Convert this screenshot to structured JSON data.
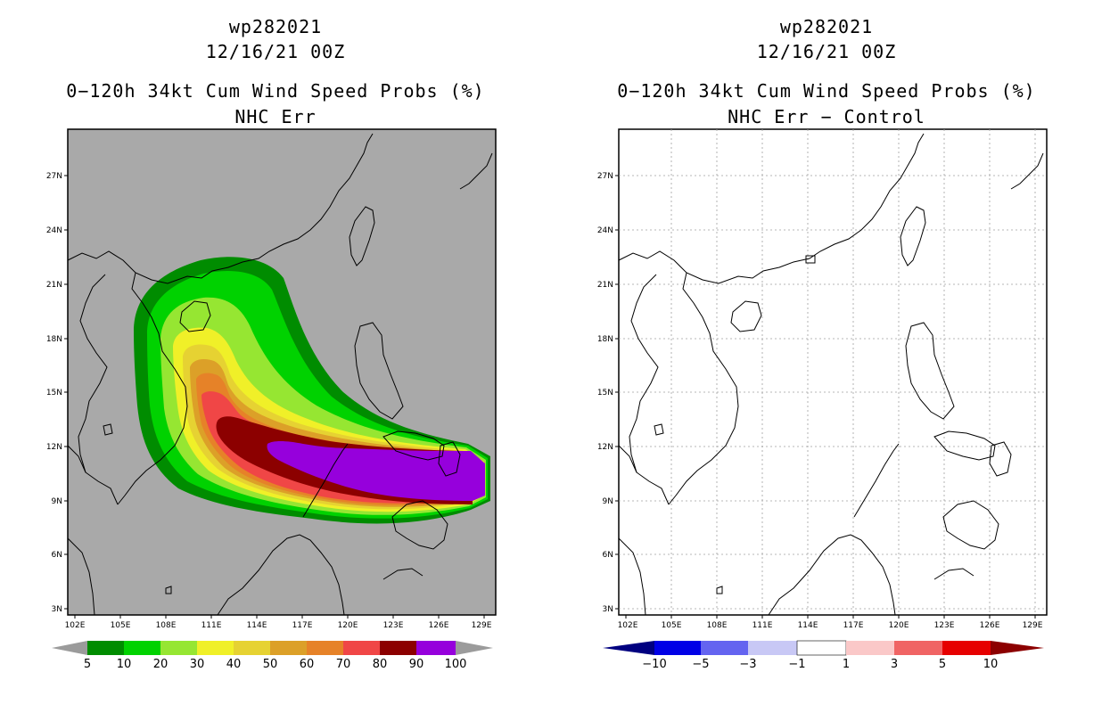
{
  "left_panel": {
    "storm_id": "wp282021",
    "date": "12/16/21 00Z",
    "product": "0−120h 34kt Cum Wind Speed Probs (%)",
    "subtitle": "NHC Err",
    "lon_labels": [
      "102E",
      "105E",
      "108E",
      "111E",
      "114E",
      "117E",
      "120E",
      "123E",
      "126E",
      "129E"
    ],
    "lat_labels": [
      "27N",
      "24N",
      "21N",
      "18N",
      "15N",
      "12N",
      "9N",
      "6N",
      "3N"
    ],
    "colorbar": {
      "labels": [
        "5",
        "10",
        "20",
        "30",
        "40",
        "50",
        "60",
        "70",
        "80",
        "90",
        "100"
      ],
      "colors": [
        "#008c00",
        "#00d200",
        "#96e632",
        "#f0f028",
        "#e6d232",
        "#dca028",
        "#e68228",
        "#f04646",
        "#8c0000",
        "#9600dc"
      ],
      "end_color": "#9b9b9b"
    },
    "background_color": "#a9a9a9"
  },
  "right_panel": {
    "storm_id": "wp282021",
    "date": "12/16/21 00Z",
    "product": "0−120h 34kt Cum Wind Speed Probs (%)",
    "subtitle": "NHC Err − Control",
    "lon_labels": [
      "102E",
      "105E",
      "108E",
      "111E",
      "114E",
      "117E",
      "120E",
      "123E",
      "126E",
      "129E"
    ],
    "lat_labels": [
      "27N",
      "24N",
      "21N",
      "18N",
      "15N",
      "12N",
      "9N",
      "6N",
      "3N"
    ],
    "colorbar": {
      "labels": [
        "−10",
        "−5",
        "−3",
        "−1",
        "1",
        "3",
        "5",
        "10"
      ],
      "colors": [
        "#000080",
        "#0000e6",
        "#6464f0",
        "#c8c8f5",
        "#ffffff",
        "#fac8c8",
        "#f06464",
        "#e60000"
      ],
      "low_color": "#000080",
      "high_color": "#8c0000"
    }
  }
}
